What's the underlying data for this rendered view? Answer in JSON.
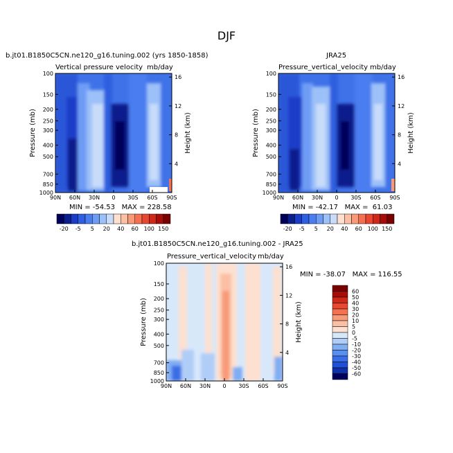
{
  "figure": {
    "title": "DJF",
    "panels": [
      {
        "title": "b.jt01.B1850C5CN.ne120_g16.tuning.002 (yrs 1850-1858)",
        "subtitle_left": "Vertical pressure velocity",
        "subtitle_right": "mb/day",
        "stats": "MIN = -54.53   MAX = 228.58"
      },
      {
        "title": "JRA25",
        "subtitle_left": "Pressure_vertical_velocity",
        "subtitle_right": "mb/day",
        "stats": "MIN = -42.17   MAX =  61.03"
      },
      {
        "title": "b.jt01.B1850C5CN.ne120_g16.tuning.002 - JRA25",
        "subtitle_left": "Pressure_vertical_velocity",
        "subtitle_right": "mb/day",
        "stats": "MIN = -38.07   MAX = 116.55"
      }
    ],
    "top_colorbar_labels": [
      "-20",
      "-5",
      "5",
      "20",
      "40",
      "60",
      "100",
      "150"
    ],
    "diff_colorbar_labels": [
      "60",
      "50",
      "40",
      "30",
      "20",
      "10",
      "5",
      "0",
      "-5",
      "-10",
      "-20",
      "-30",
      "-40",
      "-50",
      "-60"
    ]
  },
  "chart_data": [
    {
      "type": "heatmap",
      "title": "b.jt01.B1850C5CN.ne120_g16.tuning.002 (yrs 1850-1858)",
      "ylabel": "Pressure (mb)",
      "y2label": "Height (km)",
      "x_ticks": [
        "90N",
        "60N",
        "30N",
        "0",
        "30S",
        "60S",
        "90S"
      ],
      "y_ticks": [
        "100",
        "150",
        "200",
        "250",
        "300",
        "400",
        "500",
        "700",
        "850",
        "1000"
      ],
      "y2_ticks": [
        "16",
        "12",
        "8",
        "4"
      ],
      "min": -54.53,
      "max": 228.58
    },
    {
      "type": "heatmap",
      "title": "JRA25",
      "ylabel": "Pressure (mb)",
      "y2label": "Height (km)",
      "x_ticks": [
        "90N",
        "60N",
        "30N",
        "0",
        "30S",
        "60S",
        "90S"
      ],
      "y_ticks": [
        "100",
        "150",
        "200",
        "250",
        "300",
        "400",
        "500",
        "700",
        "850",
        "1000"
      ],
      "y2_ticks": [
        "16",
        "12",
        "8",
        "4"
      ],
      "min": -42.17,
      "max": 61.03
    },
    {
      "type": "heatmap",
      "title": "b.jt01.B1850C5CN.ne120_g16.tuning.002 - JRA25",
      "ylabel": "Pressure (mb)",
      "y2label": "Height (km)",
      "x_ticks": [
        "90N",
        "60N",
        "30N",
        "0",
        "30S",
        "60S",
        "90S"
      ],
      "y_ticks": [
        "100",
        "150",
        "200",
        "250",
        "300",
        "400",
        "500",
        "700",
        "850",
        "1000"
      ],
      "y2_ticks": [
        "16",
        "12",
        "8",
        "4"
      ],
      "min": -38.07,
      "max": 116.55
    }
  ],
  "colors": {
    "top_colorbar": [
      "#00005a",
      "#0a1e8c",
      "#1a3cc8",
      "#2d5fe0",
      "#4a7df0",
      "#6e9cf5",
      "#9cc0f8",
      "#c8dcfa",
      "#fde0d0",
      "#fbc0a4",
      "#f89a78",
      "#f47050",
      "#e84830",
      "#d02818",
      "#a80c08",
      "#780000"
    ],
    "diff_colorbar": [
      "#780000",
      "#a80c08",
      "#d02818",
      "#e84830",
      "#f47050",
      "#f89a78",
      "#fbc0a4",
      "#fde0d0",
      "#d8e8fb",
      "#b0cdf8",
      "#80aef3",
      "#5a8eef",
      "#3a6ee6",
      "#2050d8",
      "#1030a8",
      "#00005a"
    ]
  }
}
